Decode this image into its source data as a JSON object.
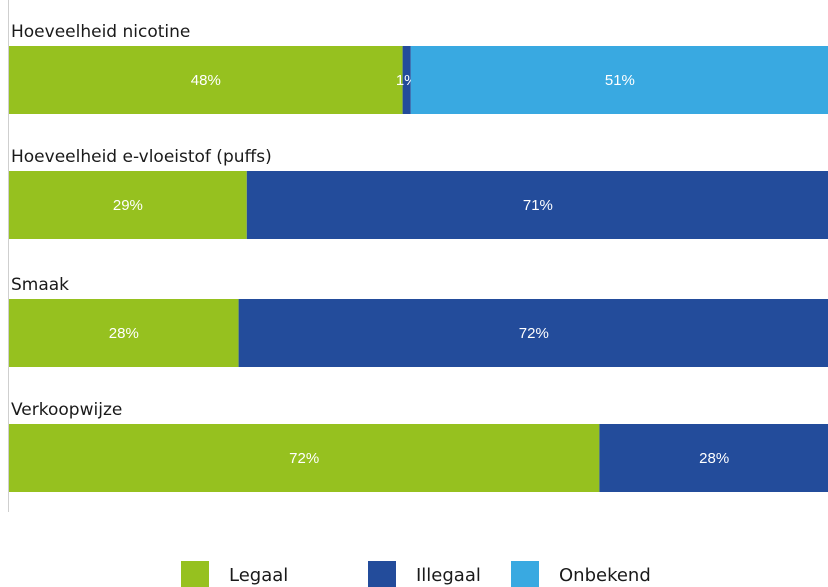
{
  "chart_data": {
    "type": "bar",
    "orientation": "horizontal",
    "stacked": true,
    "value_suffix": "%",
    "categories": [
      "Hoeveelheid nicotine",
      "Hoeveelheid e-vloeistof (puffs)",
      "Smaak",
      "Verkoopwijze"
    ],
    "series": [
      {
        "name": "Legaal",
        "color": "#96c11f",
        "values": [
          48,
          29,
          28,
          72
        ]
      },
      {
        "name": "Illegaal",
        "color": "#234c9b",
        "values": [
          1,
          71,
          72,
          28
        ]
      },
      {
        "name": "Onbekend",
        "color": "#39a9e1",
        "values": [
          51,
          0,
          0,
          0
        ]
      }
    ],
    "xlim": [
      0,
      100
    ],
    "grid": false,
    "legend_position": "bottom-center",
    "title": "",
    "xlabel": "",
    "ylabel": ""
  }
}
